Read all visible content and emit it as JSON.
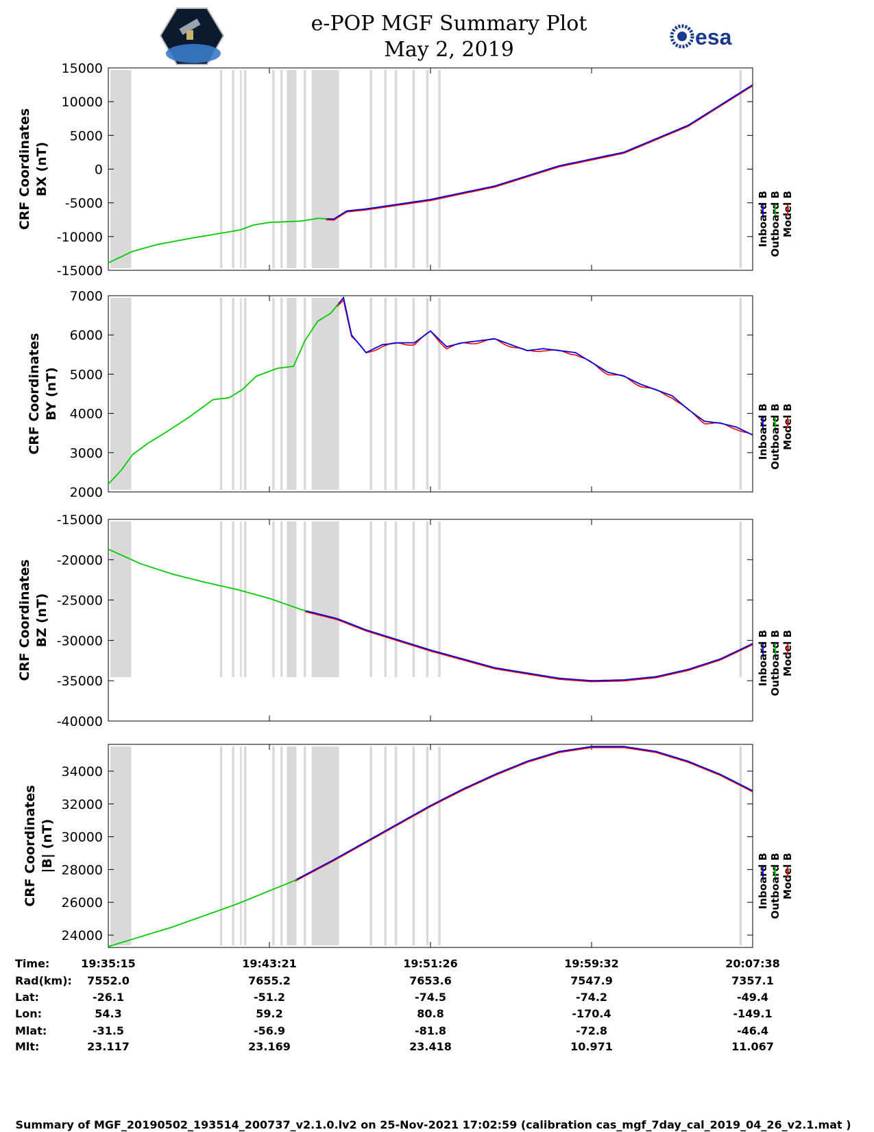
{
  "title": {
    "line1": "e-POP MGF Summary Plot",
    "line2": "May 2, 2019",
    "esa_logo_text": "esa"
  },
  "colors": {
    "inboard": "#0000dd",
    "outboard": "#00cc00",
    "model": "#ee0000",
    "gap": "#d9d9d9"
  },
  "legend": [
    "Inboard B",
    "Outboard B",
    "Model B"
  ],
  "gaps_minutes": [
    [
      0.0,
      1.3
    ],
    [
      6.8,
      6.95
    ],
    [
      7.55,
      7.7
    ],
    [
      8.05,
      8.15
    ],
    [
      8.3,
      8.45
    ],
    [
      10.05,
      10.2
    ],
    [
      10.55,
      10.7
    ],
    [
      10.95,
      11.55
    ],
    [
      12.0,
      12.15
    ],
    [
      12.5,
      14.2
    ],
    [
      16.1,
      16.25
    ],
    [
      17.0,
      17.15
    ],
    [
      17.65,
      17.8
    ],
    [
      18.75,
      18.9
    ],
    [
      19.6,
      19.75
    ],
    [
      20.35,
      20.5
    ],
    [
      39.05,
      39.2
    ]
  ],
  "chart_data": [
    {
      "type": "line",
      "ylabel_line1": "CRF Coordinates",
      "ylabel_line2": "BX (nT)",
      "ylim": [
        -15000,
        15000
      ],
      "yticks": [
        "15000",
        "10000",
        "5000",
        "0",
        "-5000",
        "-10000",
        "-15000"
      ],
      "x_minutes": [
        0,
        1.5,
        3,
        5,
        6.5,
        7.5,
        8.2,
        9,
        10,
        11,
        12,
        13,
        14,
        14.8,
        16,
        20,
        24,
        28,
        32,
        36,
        40
      ],
      "series": [
        {
          "name": "Outboard B",
          "green_until": 13.5,
          "values": [
            -13900,
            -12200,
            -11200,
            -10300,
            -9700,
            -9300,
            -9000,
            -8300,
            -7900,
            -7800,
            -7700,
            -7300,
            -7400,
            -6200,
            -5900,
            -4500,
            -2500,
            500,
            2500,
            6500,
            12500
          ]
        }
      ]
    },
    {
      "type": "line",
      "ylabel_line1": "CRF Coordinates",
      "ylabel_line2": "BY (nT)",
      "ylim": [
        2000,
        7000
      ],
      "yticks": [
        "7000",
        "6000",
        "5000",
        "4000",
        "3000",
        "2000"
      ],
      "x_minutes": [
        0,
        0.8,
        1.5,
        2.5,
        3.5,
        5,
        6.5,
        7.5,
        8.3,
        9.2,
        10.5,
        11.5,
        12.2,
        13,
        13.8,
        14.6,
        15.1,
        16,
        17,
        18,
        19,
        20,
        21,
        22,
        23,
        24,
        25,
        26,
        27,
        28,
        29,
        30,
        31,
        32,
        33,
        34,
        35,
        36,
        37,
        38,
        39,
        40
      ],
      "series": [
        {
          "name": "Outboard B",
          "green_until": 14.2,
          "values": [
            2200,
            2550,
            2950,
            3250,
            3500,
            3900,
            4350,
            4400,
            4600,
            4950,
            5150,
            5200,
            5850,
            6350,
            6550,
            6950,
            6000,
            5550,
            5750,
            5800,
            5800,
            6100,
            5700,
            5800,
            5850,
            5900,
            5750,
            5600,
            5650,
            5600,
            5550,
            5300,
            5050,
            4950,
            4750,
            4600,
            4450,
            4100,
            3800,
            3750,
            3650,
            3450
          ]
        }
      ]
    },
    {
      "type": "line",
      "ylabel_line1": "CRF Coordinates",
      "ylabel_line2": "BZ (nT)",
      "ylim": [
        -40000,
        -15000
      ],
      "yticks": [
        "-15000",
        "-20000",
        "-25000",
        "-30000",
        "-35000",
        "-40000"
      ],
      "x_minutes": [
        0,
        2,
        4,
        6,
        8,
        10,
        12,
        13,
        14.2,
        16,
        20,
        24,
        28,
        30,
        32,
        34,
        36,
        38,
        40
      ],
      "series": [
        {
          "name": "Outboard B",
          "green_until": 12.2,
          "values": [
            -18700,
            -20500,
            -21800,
            -22800,
            -23700,
            -24800,
            -26200,
            -26700,
            -27300,
            -28700,
            -31200,
            -33400,
            -34700,
            -35000,
            -34900,
            -34500,
            -33600,
            -32300,
            -30400
          ]
        }
      ]
    },
    {
      "type": "line",
      "ylabel_line1": "CRF Coordinates",
      "ylabel_line2": "|B| (nT)",
      "ylim": [
        23300,
        35600
      ],
      "yticks": [
        "34000",
        "32000",
        "30000",
        "28000",
        "26000",
        "24000"
      ],
      "x_minutes": [
        0,
        2,
        4,
        6,
        8,
        10,
        11.5,
        14,
        16,
        18,
        20,
        22,
        24,
        26,
        28,
        30,
        32,
        34,
        36,
        38,
        40
      ],
      "series": [
        {
          "name": "Outboard B",
          "green_until": 11.6,
          "values": [
            23300,
            23900,
            24500,
            25200,
            25900,
            26700,
            27300,
            28600,
            29700,
            30800,
            31900,
            32900,
            33800,
            34600,
            35200,
            35500,
            35500,
            35200,
            34600,
            33800,
            32800
          ]
        }
      ]
    }
  ],
  "info": {
    "labels": [
      "Time:",
      "Rad(km):",
      "Lat:",
      "Lon:",
      "Mlat:",
      "Mlt:"
    ],
    "columns": [
      [
        "19:35:15",
        "7552.0",
        "-26.1",
        "54.3",
        "-31.5",
        "23.117"
      ],
      [
        "19:43:21",
        "7655.2",
        "-51.2",
        "59.2",
        "-56.9",
        "23.169"
      ],
      [
        "19:51:26",
        "7653.6",
        "-74.5",
        "80.8",
        "-81.8",
        "23.418"
      ],
      [
        "19:59:32",
        "7547.9",
        "-74.2",
        "-170.4",
        "-72.8",
        "10.971"
      ],
      [
        "20:07:38",
        "7357.1",
        "-49.4",
        "-149.1",
        "-46.4",
        "11.067"
      ]
    ]
  },
  "footer": "Summary of MGF_20190502_193514_200737_v2.1.0.lv2 on 25-Nov-2021 17:02:59 (calibration cas_mgf_7day_cal_2019_04_26_v2.1.mat )"
}
